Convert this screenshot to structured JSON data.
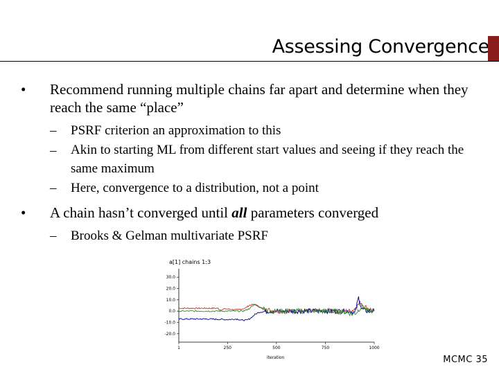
{
  "slide": {
    "title": "Assessing Convergence",
    "footer": "MCMC 35"
  },
  "bullets": [
    {
      "text": "Recommend running multiple chains far apart and determine when they reach the same “place”",
      "sub": [
        "PSRF criterion an approximation to this",
        "Akin to starting ML from different start values and seeing if they reach the same maximum",
        "Here, convergence to a distribution, not a point"
      ]
    },
    {
      "text_before": "A chain hasn’t converged until ",
      "text_emph": "all",
      "text_after": " parameters converged",
      "sub": [
        "Brooks & Gelman multivariate PSRF"
      ]
    }
  ],
  "glyphs": {
    "bullet": "•",
    "dash": "–"
  },
  "chart_data": {
    "type": "line",
    "title": "a[1] chains 1:3",
    "xlabel": "iteration",
    "x_ticks": [
      1,
      250,
      500,
      750,
      1000
    ],
    "y_ticks": [
      30.0,
      20.0,
      10.0,
      0.0,
      -10.0,
      -20.0
    ],
    "y_tick_labels": [
      "30.0",
      "20.0",
      "10.0",
      "0.0",
      "-10.0",
      "-20.0"
    ],
    "xlim": [
      1,
      1000
    ],
    "ylim": [
      -25,
      35
    ],
    "series": [
      {
        "color": "#c0392b",
        "values": [
          [
            1,
            2.5
          ],
          [
            200,
            2.5
          ],
          [
            210,
            1
          ],
          [
            240,
            2
          ],
          [
            300,
            1
          ],
          [
            340,
            2.5
          ],
          [
            360,
            5
          ],
          [
            390,
            6
          ],
          [
            420,
            3
          ],
          [
            460,
            1
          ],
          [
            500,
            0
          ],
          [
            600,
            0
          ],
          [
            700,
            0
          ],
          [
            800,
            0
          ],
          [
            880,
            0
          ],
          [
            900,
            2
          ],
          [
            930,
            8
          ],
          [
            950,
            4
          ],
          [
            1000,
            0
          ]
        ]
      },
      {
        "color": "#00008b",
        "values": [
          [
            1,
            -7
          ],
          [
            150,
            -7
          ],
          [
            250,
            -7.5
          ],
          [
            300,
            -7
          ],
          [
            320,
            -8
          ],
          [
            350,
            -8
          ],
          [
            370,
            -6
          ],
          [
            390,
            -3
          ],
          [
            410,
            -1
          ],
          [
            460,
            0
          ],
          [
            600,
            0
          ],
          [
            700,
            0
          ],
          [
            800,
            0
          ],
          [
            880,
            0
          ],
          [
            900,
            -2
          ],
          [
            920,
            12
          ],
          [
            935,
            2
          ],
          [
            960,
            0
          ],
          [
            1000,
            0
          ]
        ]
      },
      {
        "color": "#2e8b2e",
        "values": [
          [
            1,
            0
          ],
          [
            200,
            0
          ],
          [
            280,
            0
          ],
          [
            330,
            0
          ],
          [
            360,
            2
          ],
          [
            390,
            6
          ],
          [
            420,
            3
          ],
          [
            460,
            0
          ],
          [
            560,
            0
          ],
          [
            680,
            0
          ],
          [
            760,
            0
          ],
          [
            860,
            -1
          ],
          [
            890,
            -3
          ],
          [
            910,
            -1
          ],
          [
            940,
            5
          ],
          [
            960,
            0
          ],
          [
            1000,
            0
          ]
        ]
      }
    ]
  }
}
